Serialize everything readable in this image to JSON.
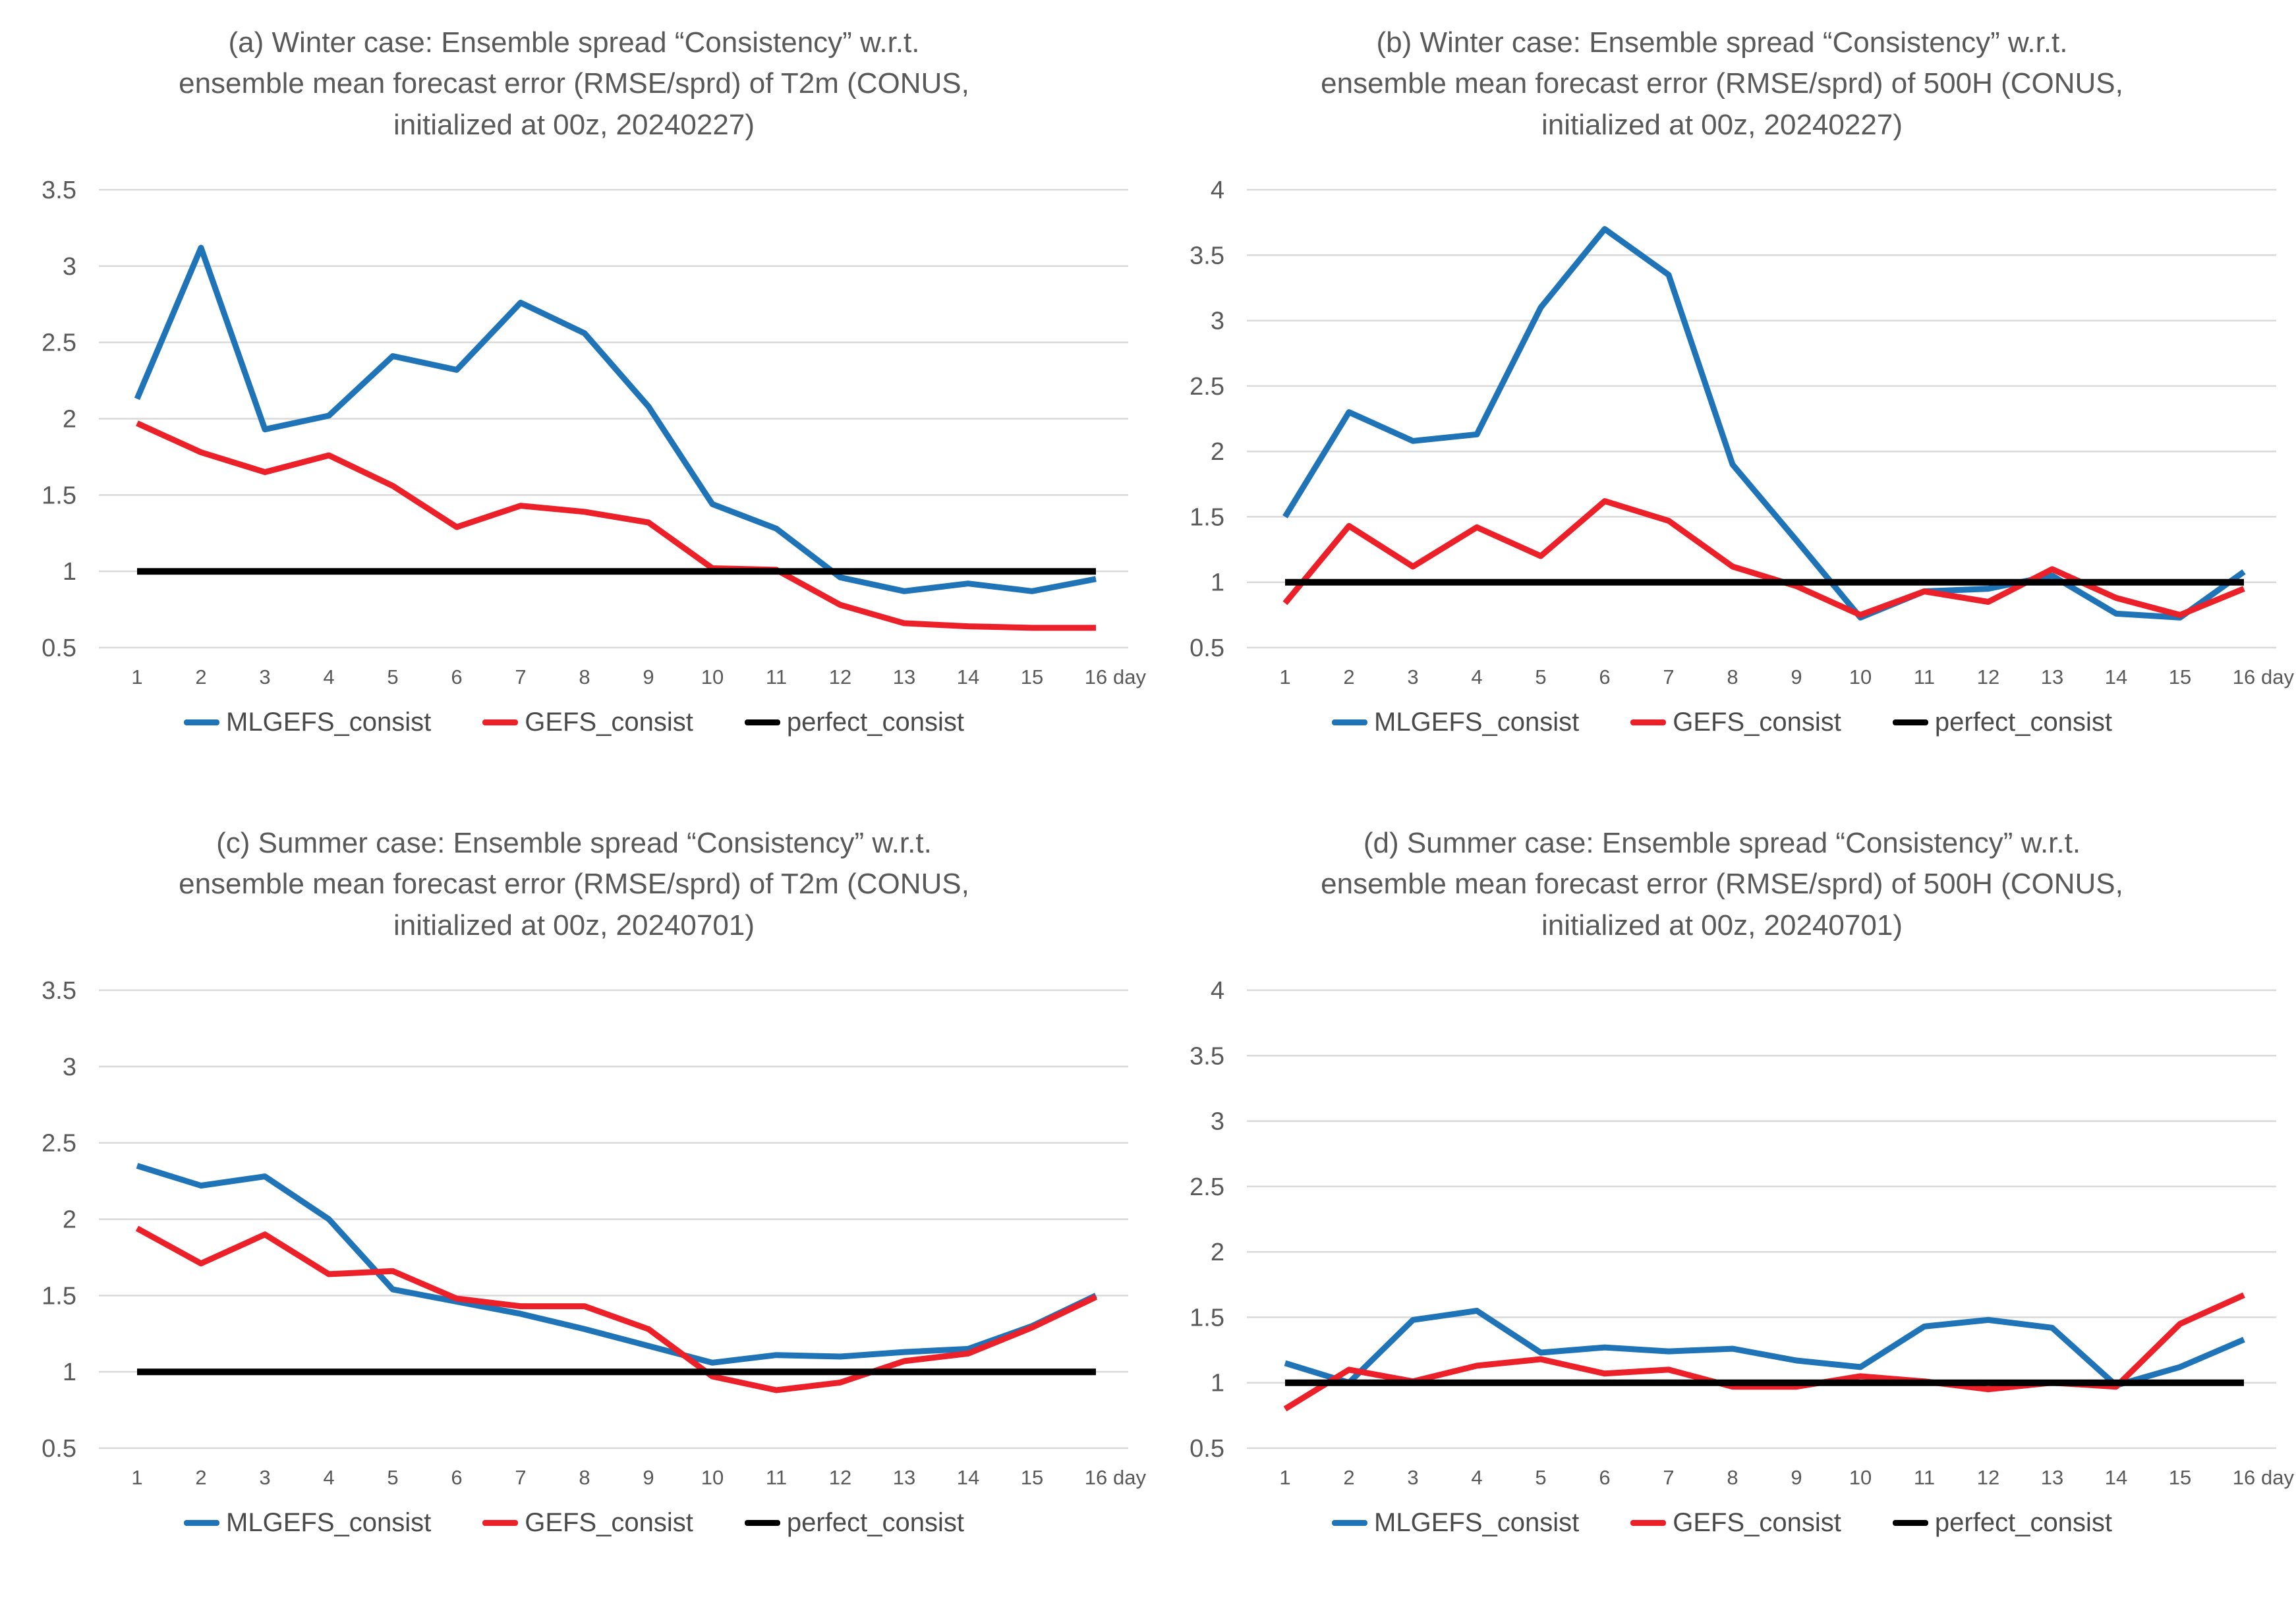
{
  "page": {
    "background": "#ffffff",
    "text_color": "#595959",
    "gridline_color": "#d9d9d9"
  },
  "legend": {
    "items": [
      {
        "label": "MLGEFS_consist",
        "color": "#1f74b8"
      },
      {
        "label": "GEFS_consist",
        "color": "#ec2028"
      },
      {
        "label": "perfect_consist",
        "color": "#000000"
      }
    ]
  },
  "chart_data": [
    {
      "id": "a",
      "type": "line",
      "title": "(a) Winter case: Ensemble spread “Consistency” w.r.t.\nensemble mean forecast error (RMSE/sprd) of T2m (CONUS,\ninitialized at 00z, 20240227)",
      "x_labels": [
        "1",
        "2",
        "3",
        "4",
        "5",
        "6",
        "7",
        "8",
        "9",
        "10",
        "11",
        "12",
        "13",
        "14",
        "15",
        "16"
      ],
      "x_axis_suffix": "day",
      "ylim": [
        0.5,
        3.5
      ],
      "yticks": [
        3.5,
        3,
        2.5,
        2,
        1.5,
        1,
        0.5
      ],
      "grid": true,
      "legend_position": "bottom",
      "series": [
        {
          "name": "MLGEFS_consist",
          "color": "#1f74b8",
          "values": [
            2.13,
            3.12,
            1.93,
            2.02,
            2.41,
            2.32,
            2.76,
            2.56,
            2.08,
            1.44,
            1.28,
            0.96,
            0.87,
            0.92,
            0.87,
            0.95
          ]
        },
        {
          "name": "GEFS_consist",
          "color": "#ec2028",
          "values": [
            1.97,
            1.78,
            1.65,
            1.76,
            1.56,
            1.29,
            1.43,
            1.39,
            1.32,
            1.02,
            1.01,
            0.78,
            0.66,
            0.64,
            0.63,
            0.63
          ]
        },
        {
          "name": "perfect_consist",
          "color": "#000000",
          "values": [
            1,
            1,
            1,
            1,
            1,
            1,
            1,
            1,
            1,
            1,
            1,
            1,
            1,
            1,
            1,
            1
          ]
        }
      ]
    },
    {
      "id": "b",
      "type": "line",
      "title": "(b) Winter case: Ensemble spread “Consistency” w.r.t.\nensemble mean forecast error (RMSE/sprd) of 500H (CONUS,\ninitialized at 00z, 20240227)",
      "x_labels": [
        "1",
        "2",
        "3",
        "4",
        "5",
        "6",
        "7",
        "8",
        "9",
        "10",
        "11",
        "12",
        "13",
        "14",
        "15",
        "16"
      ],
      "x_axis_suffix": "day",
      "ylim": [
        0.5,
        4
      ],
      "yticks": [
        4,
        3.5,
        3,
        2.5,
        2,
        1.5,
        1,
        0.5
      ],
      "grid": true,
      "legend_position": "bottom",
      "series": [
        {
          "name": "MLGEFS_consist",
          "color": "#1f74b8",
          "values": [
            1.5,
            2.3,
            2.08,
            2.13,
            3.1,
            3.7,
            3.35,
            1.9,
            1.32,
            0.73,
            0.93,
            0.95,
            1.05,
            0.76,
            0.73,
            1.08
          ]
        },
        {
          "name": "GEFS_consist",
          "color": "#ec2028",
          "values": [
            0.84,
            1.43,
            1.12,
            1.42,
            1.2,
            1.62,
            1.47,
            1.12,
            0.97,
            0.75,
            0.93,
            0.85,
            1.1,
            0.88,
            0.75,
            0.95
          ]
        },
        {
          "name": "perfect_consist",
          "color": "#000000",
          "values": [
            1,
            1,
            1,
            1,
            1,
            1,
            1,
            1,
            1,
            1,
            1,
            1,
            1,
            1,
            1,
            1
          ]
        }
      ]
    },
    {
      "id": "c",
      "type": "line",
      "title": "(c) Summer case: Ensemble spread “Consistency” w.r.t.\nensemble mean forecast error (RMSE/sprd) of T2m (CONUS,\ninitialized at 00z, 20240701)",
      "x_labels": [
        "1",
        "2",
        "3",
        "4",
        "5",
        "6",
        "7",
        "8",
        "9",
        "10",
        "11",
        "12",
        "13",
        "14",
        "15",
        "16"
      ],
      "x_axis_suffix": "day",
      "ylim": [
        0.5,
        3.5
      ],
      "yticks": [
        3.5,
        3,
        2.5,
        2,
        1.5,
        1,
        0.5
      ],
      "grid": true,
      "legend_position": "bottom",
      "series": [
        {
          "name": "MLGEFS_consist",
          "color": "#1f74b8",
          "values": [
            2.35,
            2.22,
            2.28,
            2.0,
            1.54,
            1.46,
            1.38,
            1.28,
            1.17,
            1.06,
            1.11,
            1.1,
            1.13,
            1.15,
            1.3,
            1.5
          ]
        },
        {
          "name": "GEFS_consist",
          "color": "#ec2028",
          "values": [
            1.94,
            1.71,
            1.9,
            1.64,
            1.66,
            1.48,
            1.43,
            1.43,
            1.28,
            0.97,
            0.88,
            0.93,
            1.07,
            1.12,
            1.29,
            1.49
          ]
        },
        {
          "name": "perfect_consist",
          "color": "#000000",
          "values": [
            1,
            1,
            1,
            1,
            1,
            1,
            1,
            1,
            1,
            1,
            1,
            1,
            1,
            1,
            1,
            1
          ]
        }
      ]
    },
    {
      "id": "d",
      "type": "line",
      "title": "(d) Summer case: Ensemble spread “Consistency” w.r.t.\nensemble mean forecast error (RMSE/sprd) of 500H (CONUS,\ninitialized at 00z, 20240701)",
      "x_labels": [
        "1",
        "2",
        "3",
        "4",
        "5",
        "6",
        "7",
        "8",
        "9",
        "10",
        "11",
        "12",
        "13",
        "14",
        "15",
        "16"
      ],
      "x_axis_suffix": "day",
      "ylim": [
        0.5,
        4
      ],
      "yticks": [
        4,
        3.5,
        3,
        2.5,
        2,
        1.5,
        1,
        0.5
      ],
      "grid": true,
      "legend_position": "bottom",
      "series": [
        {
          "name": "MLGEFS_consist",
          "color": "#1f74b8",
          "values": [
            1.15,
            1.0,
            1.48,
            1.55,
            1.23,
            1.27,
            1.24,
            1.26,
            1.17,
            1.12,
            1.43,
            1.48,
            1.42,
            0.98,
            1.12,
            1.33
          ]
        },
        {
          "name": "GEFS_consist",
          "color": "#ec2028",
          "values": [
            0.8,
            1.1,
            1.01,
            1.13,
            1.18,
            1.07,
            1.1,
            0.97,
            0.97,
            1.05,
            1.01,
            0.95,
            1.0,
            0.97,
            1.45,
            1.67
          ]
        },
        {
          "name": "perfect_consist",
          "color": "#000000",
          "values": [
            1,
            1,
            1,
            1,
            1,
            1,
            1,
            1,
            1,
            1,
            1,
            1,
            1,
            1,
            1,
            1
          ]
        }
      ]
    }
  ]
}
